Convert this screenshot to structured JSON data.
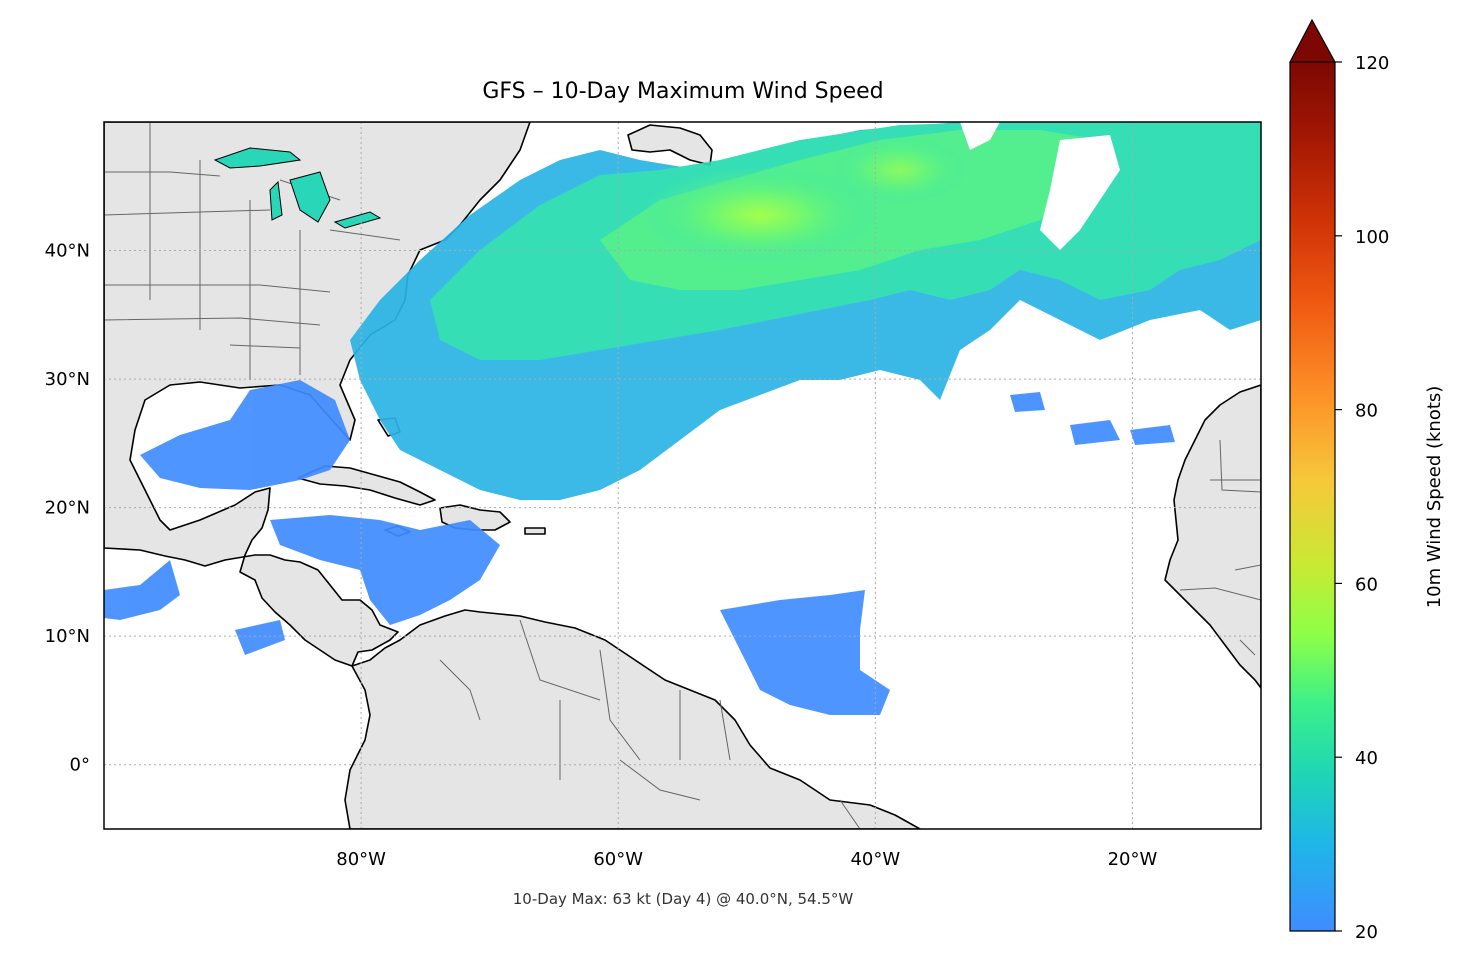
{
  "title": "GFS – 10-Day Maximum Wind Speed",
  "footnote": "10-Day Max: 63 kt (Day 4) @ 40.0°N, 54.5°W",
  "map": {
    "extent": {
      "lon": [
        -100,
        -10
      ],
      "lat": [
        -5,
        50
      ]
    },
    "lon_ticks": [
      {
        "value": -80,
        "label": "80°W"
      },
      {
        "value": -60,
        "label": "60°W"
      },
      {
        "value": -40,
        "label": "40°W"
      },
      {
        "value": -20,
        "label": "20°W"
      }
    ],
    "lat_ticks": [
      {
        "value": 40,
        "label": "40°N"
      },
      {
        "value": 30,
        "label": "30°N"
      },
      {
        "value": 20,
        "label": "20°N"
      },
      {
        "value": 10,
        "label": "10°N"
      },
      {
        "value": 0,
        "label": "0°"
      }
    ],
    "gridlines": true,
    "land_color": "#e5e5e5",
    "ocean_color": "#ffffff"
  },
  "colorbar": {
    "label": "10m Wind Speed (knots)",
    "min": 20,
    "max": 120,
    "extend": "max",
    "cmap": "turbo",
    "ticks": [
      {
        "value": 20,
        "label": "20"
      },
      {
        "value": 40,
        "label": "40"
      },
      {
        "value": 60,
        "label": "60"
      },
      {
        "value": 80,
        "label": "80"
      },
      {
        "value": 100,
        "label": "100"
      },
      {
        "value": 120,
        "label": "120"
      }
    ]
  }
}
